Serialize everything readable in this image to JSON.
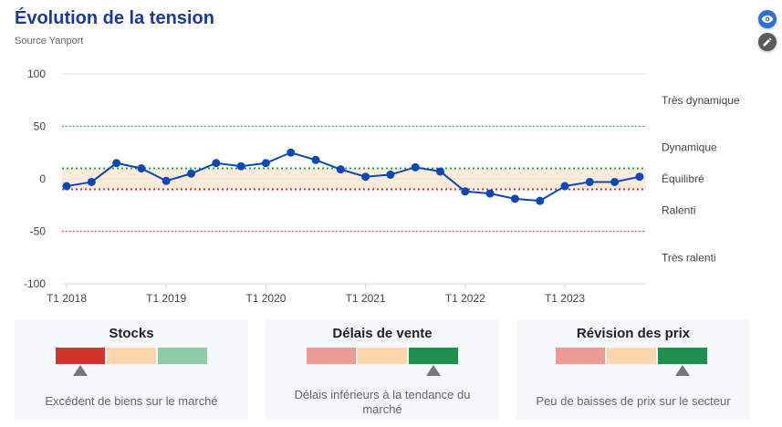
{
  "header": {
    "title": "Évolution de la tension",
    "subtitle": "Source Yanport"
  },
  "actions": {
    "view_icon": "eye-icon",
    "edit_icon": "pencil-icon"
  },
  "chart_data": {
    "type": "line",
    "title": "Évolution de la tension",
    "xlabel": "",
    "ylabel": "",
    "ylim": [
      -100,
      100
    ],
    "y_ticks": [
      100,
      50,
      0,
      -50,
      -100
    ],
    "x_tick_labels": [
      "T1 2018",
      "T1 2019",
      "T1 2020",
      "T1 2021",
      "T1 2022",
      "T1 2023"
    ],
    "grid": true,
    "series": [
      {
        "color": "#0b47b5",
        "x": [
          "T1 2018",
          "T2 2018",
          "T3 2018",
          "T4 2018",
          "T1 2019",
          "T2 2019",
          "T3 2019",
          "T4 2019",
          "T1 2020",
          "T2 2020",
          "T3 2020",
          "T4 2020",
          "T1 2021",
          "T2 2021",
          "T3 2021",
          "T4 2021",
          "T1 2022",
          "T2 2022",
          "T3 2022",
          "T4 2022",
          "T1 2023",
          "T2 2023",
          "T3 2023",
          "T4 2023"
        ],
        "values": [
          -7,
          -3,
          15,
          10,
          -2,
          5,
          15,
          12,
          15,
          25,
          18,
          9,
          2,
          4,
          11,
          7,
          -12,
          -14,
          -19,
          -21,
          -7,
          -3,
          -3,
          2
        ]
      }
    ],
    "threshold_lines": [
      {
        "value": 50,
        "color": "#2a9d5c",
        "style": "dotted"
      },
      {
        "value": 10,
        "color": "#2a9d5c",
        "style": "dotted-bold"
      },
      {
        "value": -10,
        "color": "#d0342c",
        "style": "dotted-bold"
      },
      {
        "value": -50,
        "color": "#d0342c",
        "style": "dotted"
      }
    ],
    "neutral_band": {
      "from": -10,
      "to": 10,
      "color": "#fcebd9"
    },
    "zone_labels": [
      {
        "label": "Très dynamique",
        "value": 75
      },
      {
        "label": "Dynamique",
        "value": 30
      },
      {
        "label": "Équilibré",
        "value": 0
      },
      {
        "label": "Ralenti",
        "value": -30
      },
      {
        "label": "Très ralenti",
        "value": -75
      }
    ]
  },
  "cards": [
    {
      "title": "Stocks",
      "description": "Excédent de biens sur le marché",
      "segment_colors": [
        "#d4332b",
        "#fcd6ac",
        "#8ecba9"
      ],
      "active_index": 0
    },
    {
      "title": "Délais de vente",
      "description": "Délais inférieurs à la tendance du marché",
      "segment_colors": [
        "#ec9b94",
        "#fcd6ac",
        "#1f8f4e"
      ],
      "active_index": 2
    },
    {
      "title": "Révision des prix",
      "description": "Peu de baisses de prix sur le secteur",
      "segment_colors": [
        "#ec9b94",
        "#fcd6ac",
        "#1f8f4e"
      ],
      "active_index": 2
    }
  ]
}
